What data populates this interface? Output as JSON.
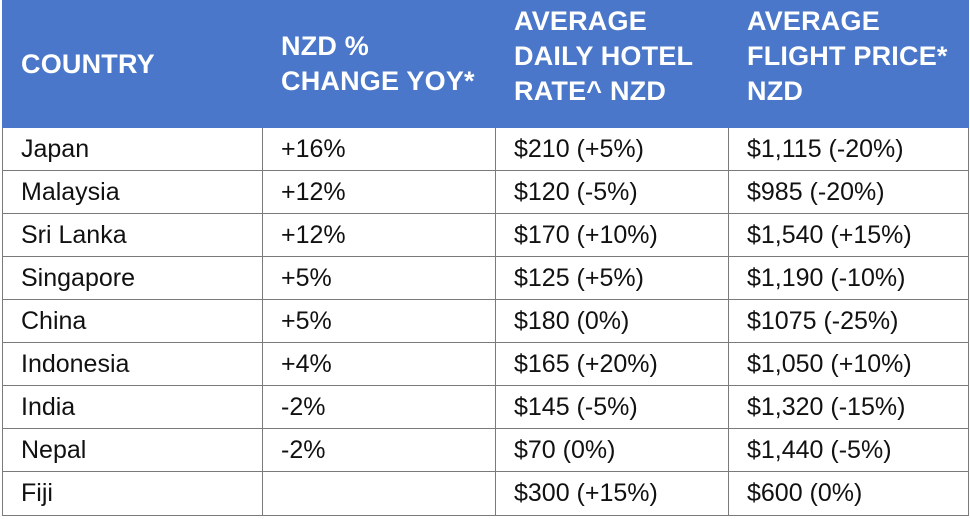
{
  "table": {
    "headers": [
      {
        "lines": [
          "COUNTRY"
        ]
      },
      {
        "lines": [
          "NZD %",
          "CHANGE YOY*"
        ]
      },
      {
        "lines": [
          "AVERAGE",
          "DAILY HOTEL",
          "RATE^ NZD"
        ]
      },
      {
        "lines": [
          "AVERAGE",
          "FLIGHT PRICE*",
          "NZD"
        ]
      }
    ],
    "rows": [
      [
        "Japan",
        "+16%",
        "$210 (+5%)",
        "$1,115 (-20%)"
      ],
      [
        "Malaysia",
        "+12%",
        "$120 (-5%)",
        "$985 (-20%)"
      ],
      [
        "Sri Lanka",
        "+12%",
        "$170 (+10%)",
        "$1,540 (+15%)"
      ],
      [
        "Singapore",
        "+5%",
        "$125 (+5%)",
        "$1,190 (-10%)"
      ],
      [
        "China",
        "+5%",
        "$180 (0%)",
        "$1075 (-25%)"
      ],
      [
        "Indonesia",
        "+4%",
        "$165 (+20%)",
        "$1,050 (+10%)"
      ],
      [
        "India",
        "-2%",
        "$145 (-5%)",
        "$1,320 (-15%)"
      ],
      [
        "Nepal",
        "-2%",
        "$70 (0%)",
        "$1,440 (-5%)"
      ],
      [
        "Fiji",
        "",
        "$300 (+15%)",
        "$600 (0%)"
      ]
    ]
  },
  "colors": {
    "header_background": "#4a77c9",
    "header_text": "#ffffff",
    "grid_lines": "#7a7a7a"
  }
}
